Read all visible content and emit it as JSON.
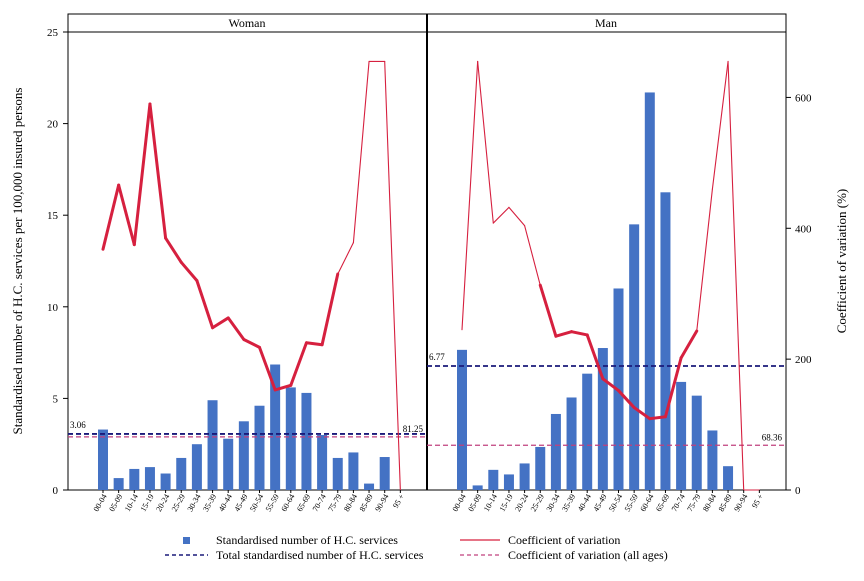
{
  "chart_data": {
    "type": "bar",
    "categories": [
      "00-04",
      "05-09",
      "10-14",
      "15-19",
      "20-24",
      "25-29",
      "30-34",
      "35-39",
      "40-44",
      "45-49",
      "50-54",
      "55-59",
      "60-64",
      "65-69",
      "70-74",
      "75-79",
      "80-84",
      "85-89",
      "90-94",
      "95 +"
    ],
    "ylabel_left": "Standardised number of H.C. services per 100,000 insured persons",
    "ylabel_right": "Coefficient of variation (%)",
    "ylim_left": [
      0,
      25
    ],
    "ylim_right": [
      0,
      700
    ],
    "yticks_left": [
      "0",
      "5",
      "10",
      "15",
      "20",
      "25"
    ],
    "yticks_right": [
      "0",
      "200",
      "400",
      "600"
    ],
    "grid": false,
    "legend_position": "bottom",
    "legend": {
      "bars": "Standardised number of H.C. services",
      "cv": "Coefficient of variation",
      "total": "Total standardised number of H.C. services",
      "cv_all": "Coefficient of variation (all ages)"
    },
    "colors": {
      "bars": "#4472c4",
      "cv": "#d6203f",
      "total": "#1a1a7a",
      "cv_all": "#c0407e"
    },
    "panels": [
      {
        "title": "Woman",
        "values": [
          3.3,
          0.65,
          1.15,
          1.25,
          0.9,
          1.75,
          2.5,
          4.9,
          2.8,
          3.75,
          4.6,
          6.85,
          5.6,
          5.3,
          3.0,
          1.75,
          2.05,
          0.35,
          1.8,
          0
        ],
        "cv": [
          368,
          466,
          375,
          590,
          385,
          348,
          320,
          248,
          263,
          230,
          218,
          153,
          160,
          225,
          222,
          330,
          378,
          655,
          655,
          0
        ],
        "cv_thick": [
          true,
          true,
          true,
          true,
          true,
          true,
          true,
          true,
          true,
          true,
          true,
          true,
          true,
          true,
          true,
          true,
          false,
          false,
          false,
          false
        ],
        "total": 3.06,
        "cv_all": 81.25,
        "total_label": "3.06",
        "cv_all_label": "81.25"
      },
      {
        "title": "Man",
        "values": [
          7.65,
          0.25,
          1.1,
          0.85,
          1.45,
          2.35,
          4.15,
          5.05,
          6.35,
          7.75,
          11.0,
          14.5,
          21.7,
          16.25,
          5.9,
          5.15,
          3.25,
          1.3,
          0,
          0
        ],
        "cv": [
          245,
          655,
          408,
          432,
          404,
          313,
          235,
          242,
          237,
          170,
          152,
          126,
          109,
          112,
          202,
          243,
          460,
          655,
          0,
          0
        ],
        "cv_thick": [
          false,
          false,
          false,
          false,
          false,
          true,
          true,
          true,
          true,
          true,
          true,
          true,
          true,
          true,
          true,
          true,
          false,
          false,
          false,
          false
        ],
        "total": 6.77,
        "cv_all": 68.36,
        "total_label": "6.77",
        "cv_all_label": "68.36"
      }
    ]
  }
}
